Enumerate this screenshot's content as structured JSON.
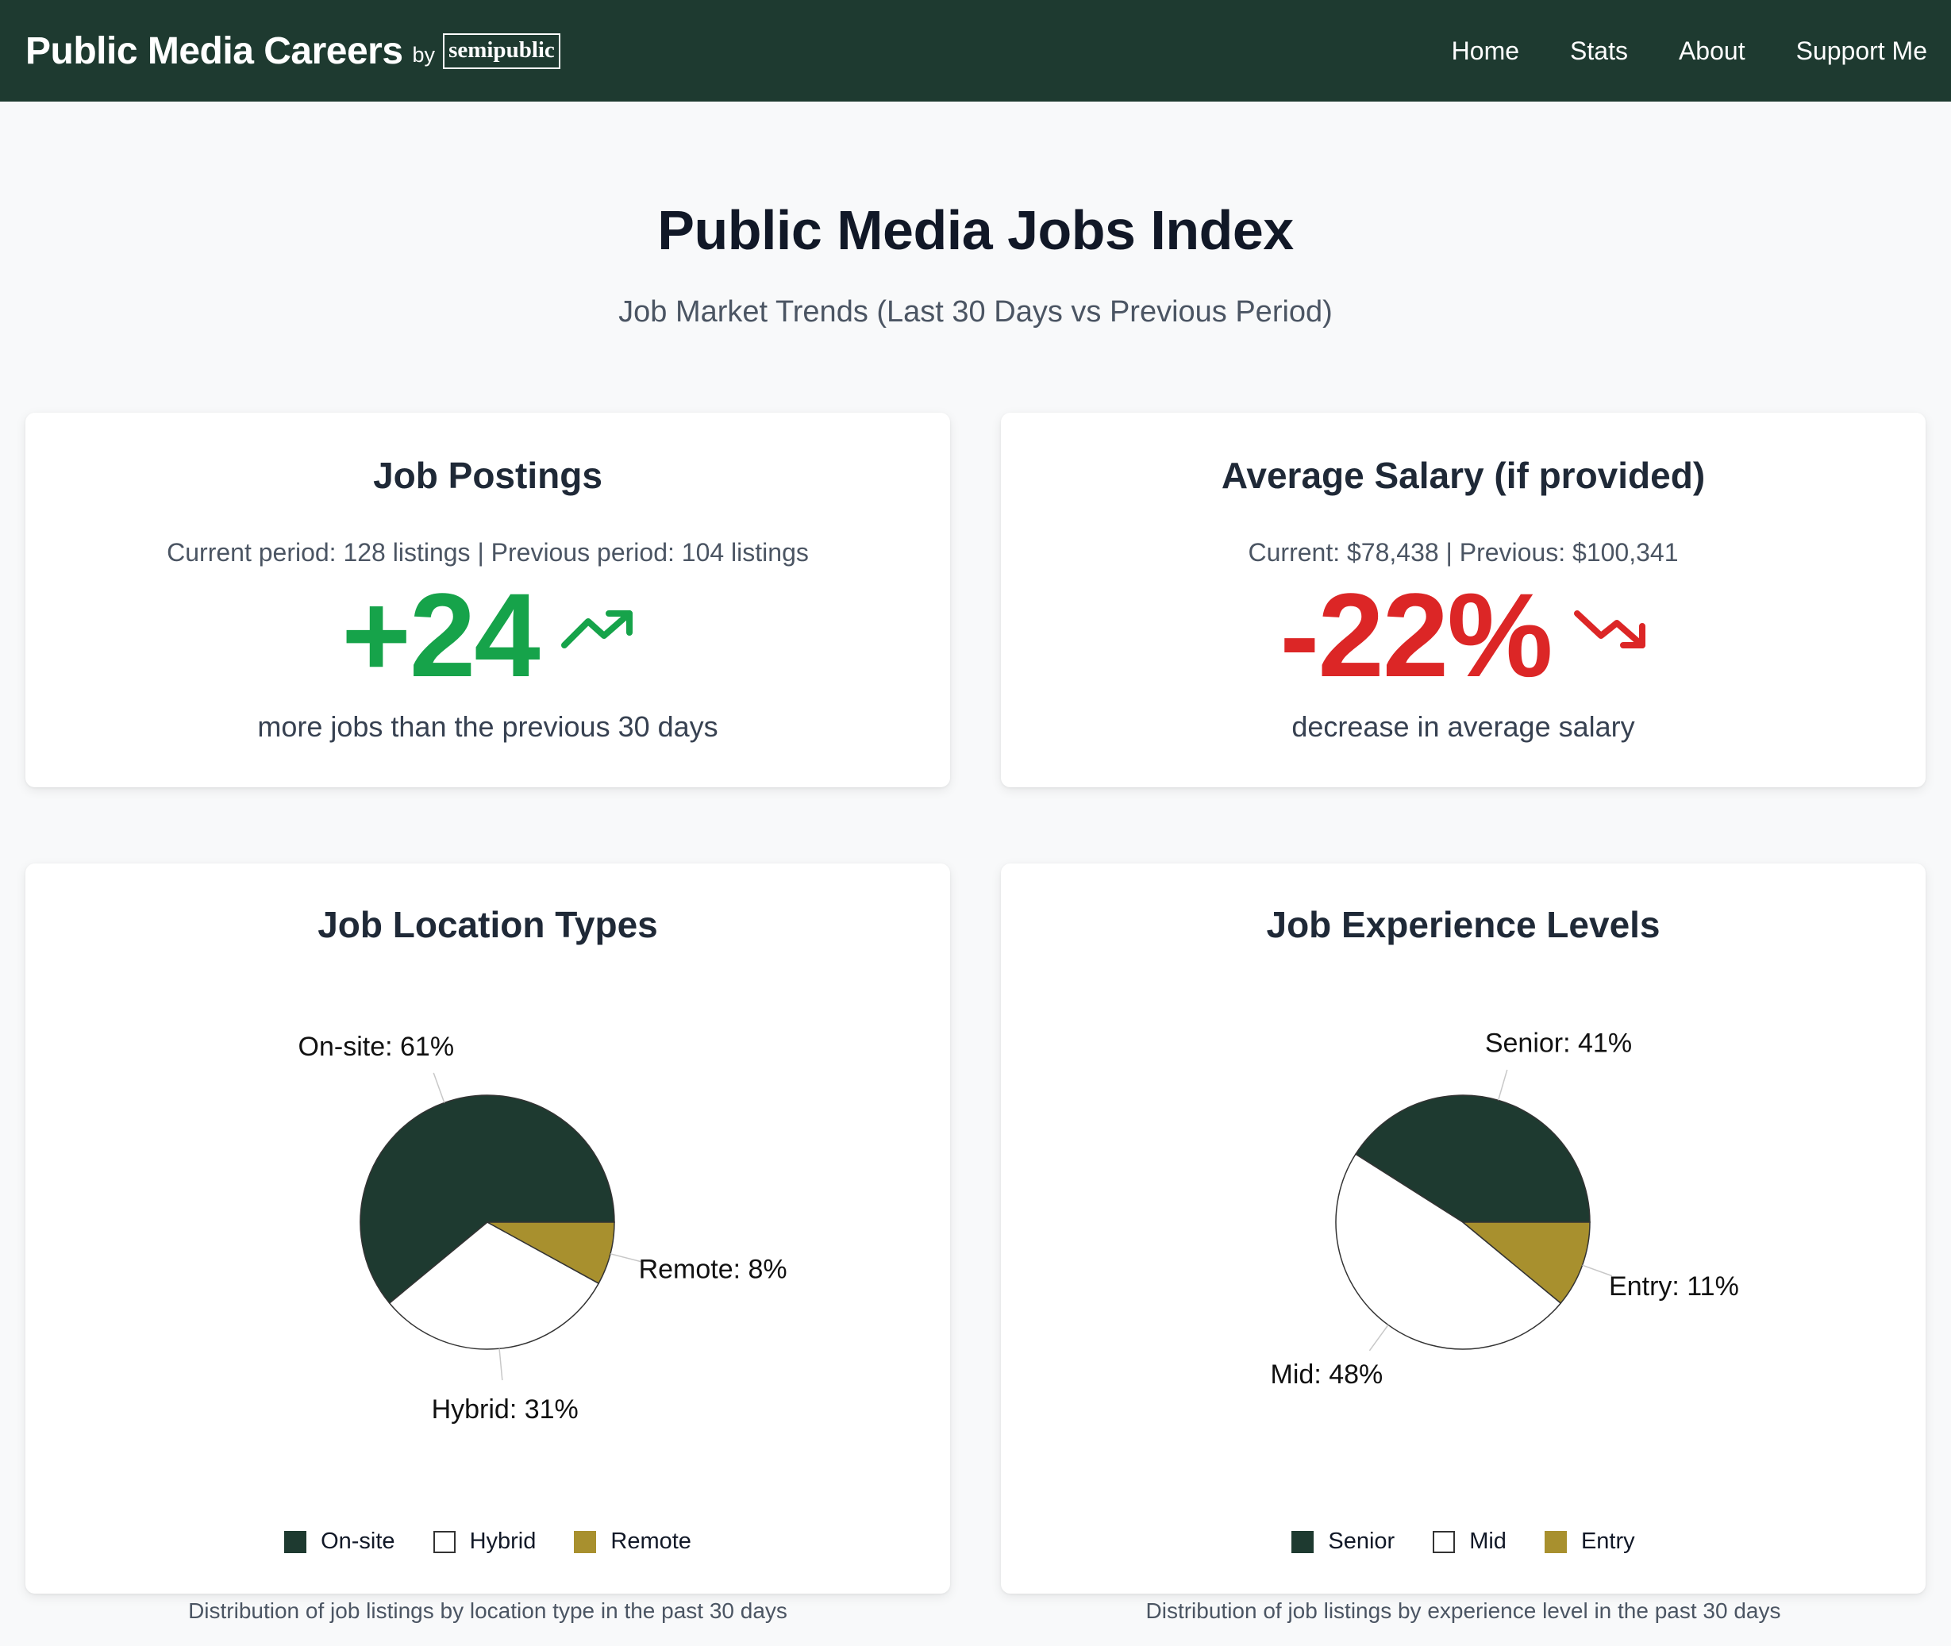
{
  "nav": {
    "brand_title": "Public Media Careers",
    "brand_by": "by",
    "brand_logo": "semipublic",
    "links": [
      "Home",
      "Stats",
      "About",
      "Support Me"
    ]
  },
  "header": {
    "title": "Public Media Jobs Index",
    "subtitle": "Job Market Trends (Last 30 Days vs Previous Period)"
  },
  "postings": {
    "title": "Job Postings",
    "info": "Current period: 128 listings | Previous period: 104 listings",
    "value": "+24",
    "description": "more jobs than the previous 30 days",
    "icon": "trending-up-icon",
    "color": "#16a34a"
  },
  "salary": {
    "title": "Average Salary (if provided)",
    "info": "Current: $78,438 | Previous: $100,341",
    "value": "-22%",
    "description": "decrease in average salary",
    "icon": "trending-down-icon",
    "color": "#dc2626"
  },
  "location": {
    "title": "Job Location Types",
    "caption": "Distribution of job listings by location type in the past 30 days"
  },
  "experience": {
    "title": "Job Experience Levels",
    "caption": "Distribution of job listings by experience level in the past 30 days"
  },
  "chart_data": [
    {
      "type": "pie",
      "title": "Job Location Types",
      "legend_position": "bottom",
      "slices": [
        {
          "name": "On-site",
          "value": 61,
          "label": "On-site: 61%",
          "color": "#1e3a30"
        },
        {
          "name": "Hybrid",
          "value": 31,
          "label": "Hybrid: 31%",
          "color": "#ffffff"
        },
        {
          "name": "Remote",
          "value": 8,
          "label": "Remote: 8%",
          "color": "#a8902e"
        }
      ]
    },
    {
      "type": "pie",
      "title": "Job Experience Levels",
      "legend_position": "bottom",
      "slices": [
        {
          "name": "Senior",
          "value": 41,
          "label": "Senior: 41%",
          "color": "#1e3a30"
        },
        {
          "name": "Mid",
          "value": 48,
          "label": "Mid: 48%",
          "color": "#ffffff"
        },
        {
          "name": "Entry",
          "value": 11,
          "label": "Entry: 11%",
          "color": "#a8902e"
        }
      ]
    }
  ]
}
